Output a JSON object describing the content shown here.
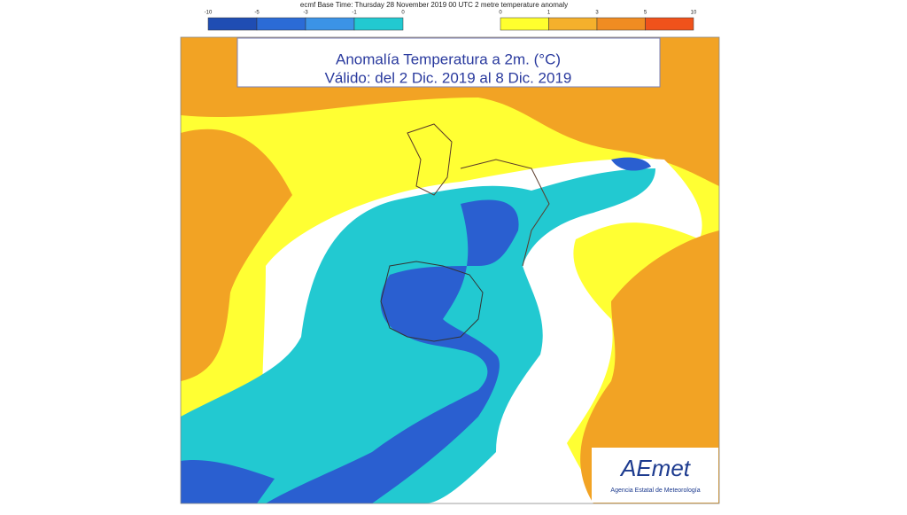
{
  "header": {
    "text": "ecmf  Base Time: Thursday 28 November 2019 00 UTC 2 metre temperature anomaly"
  },
  "legend": {
    "cold": {
      "ticks": [
        -10,
        -5,
        -3,
        -1,
        0
      ],
      "colors": [
        "#1f4db3",
        "#2b6bd6",
        "#3b93e6",
        "#22c9d1"
      ]
    },
    "warm": {
      "ticks": [
        0,
        1,
        3,
        5,
        10
      ],
      "colors": [
        "#ffff2e",
        "#f5b02c",
        "#f08c22",
        "#f0521b"
      ]
    }
  },
  "map": {
    "title": "Anomalía Temperatura a 2m. (°C)",
    "subtitle": "Válido: del 2 Dic. 2019 al 8 Dic. 2019"
  },
  "logo": {
    "name": "AEmet",
    "caption": "Agencia Estatal de Meteorología"
  }
}
